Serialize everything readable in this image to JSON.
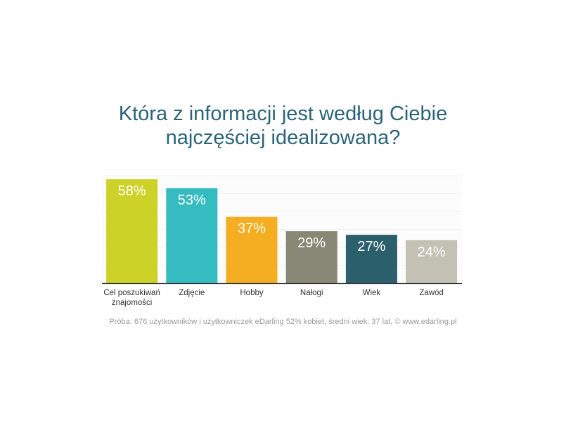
{
  "title_lines": [
    "Która z informacji jest według Ciebie",
    "najczęściej idealizowana?"
  ],
  "source": "Próba: 676 użytkowników i użytkowniczek eDarling 52% kobiet, średni wiek: 37 lat, © www.edarling.pl",
  "chart_data": {
    "type": "bar",
    "title": "Która z informacji jest według Ciebie najczęściej idealizowana?",
    "categories": [
      [
        "Cel poszukiwań",
        "znajomości"
      ],
      [
        "Zdjęcie"
      ],
      [
        "Hobby"
      ],
      [
        "Nałogi"
      ],
      [
        "Wiek"
      ],
      [
        "Zawód"
      ]
    ],
    "values": [
      58,
      53,
      37,
      29,
      27,
      24
    ],
    "value_labels": [
      "58%",
      "53%",
      "37%",
      "29%",
      "27%",
      "24%"
    ],
    "colors": [
      "#cdd229",
      "#35bcc0",
      "#f5ae21",
      "#878775",
      "#2b5f6b",
      "#c3c0b4"
    ],
    "ylim": [
      0,
      60
    ],
    "grid": true,
    "grid_color": "#f2f2f2",
    "label_color": "#ffffff"
  }
}
